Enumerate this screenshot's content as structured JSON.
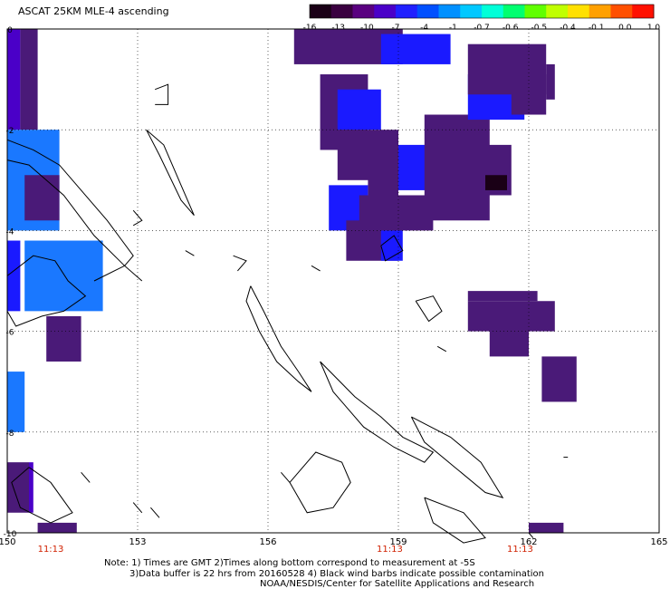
{
  "title": "ASCAT 25KM MLE-4 ascending",
  "colorbar": {
    "colors": [
      "#1a0016",
      "#3a0040",
      "#5a0080",
      "#4a00c8",
      "#2020ff",
      "#0050ff",
      "#0090ff",
      "#00c8ff",
      "#00ffd8",
      "#00ff70",
      "#60ff00",
      "#c0ff00",
      "#ffe000",
      "#ffa000",
      "#ff5000",
      "#ff1000"
    ],
    "labels": [
      "-16",
      "-13",
      "-10",
      "-7",
      "-4",
      "-1",
      "-0.7",
      "-0.6",
      "-0.5",
      "-0.4",
      "-0.1",
      "0.0",
      "1.0"
    ]
  },
  "map": {
    "lon_range": [
      150,
      165
    ],
    "lat_range": [
      -10,
      0
    ],
    "x_labels": [
      "150",
      "153",
      "156",
      "159",
      "162",
      "165"
    ],
    "y_labels": [
      "0",
      "-2",
      "-4",
      "-6",
      "-8",
      "-10"
    ],
    "time_labels": [
      "11:13",
      "11:13",
      "11:13"
    ],
    "palette": {
      "dark": "#1a0016",
      "purple": "#4a1a78",
      "violet": "#4a00c8",
      "blue": "#1a1aff",
      "sky": "#1a78ff"
    }
  },
  "notes": {
    "line1": "Note: 1) Times are GMT 2)Times along bottom correspond to measurement at -5S",
    "line2": "3)Data buffer is 22 hrs from 20160528 4) Black wind barbs indicate possible contamination",
    "line3": "NOAA/NESDIS/Center for Satellite Applications and Research"
  }
}
